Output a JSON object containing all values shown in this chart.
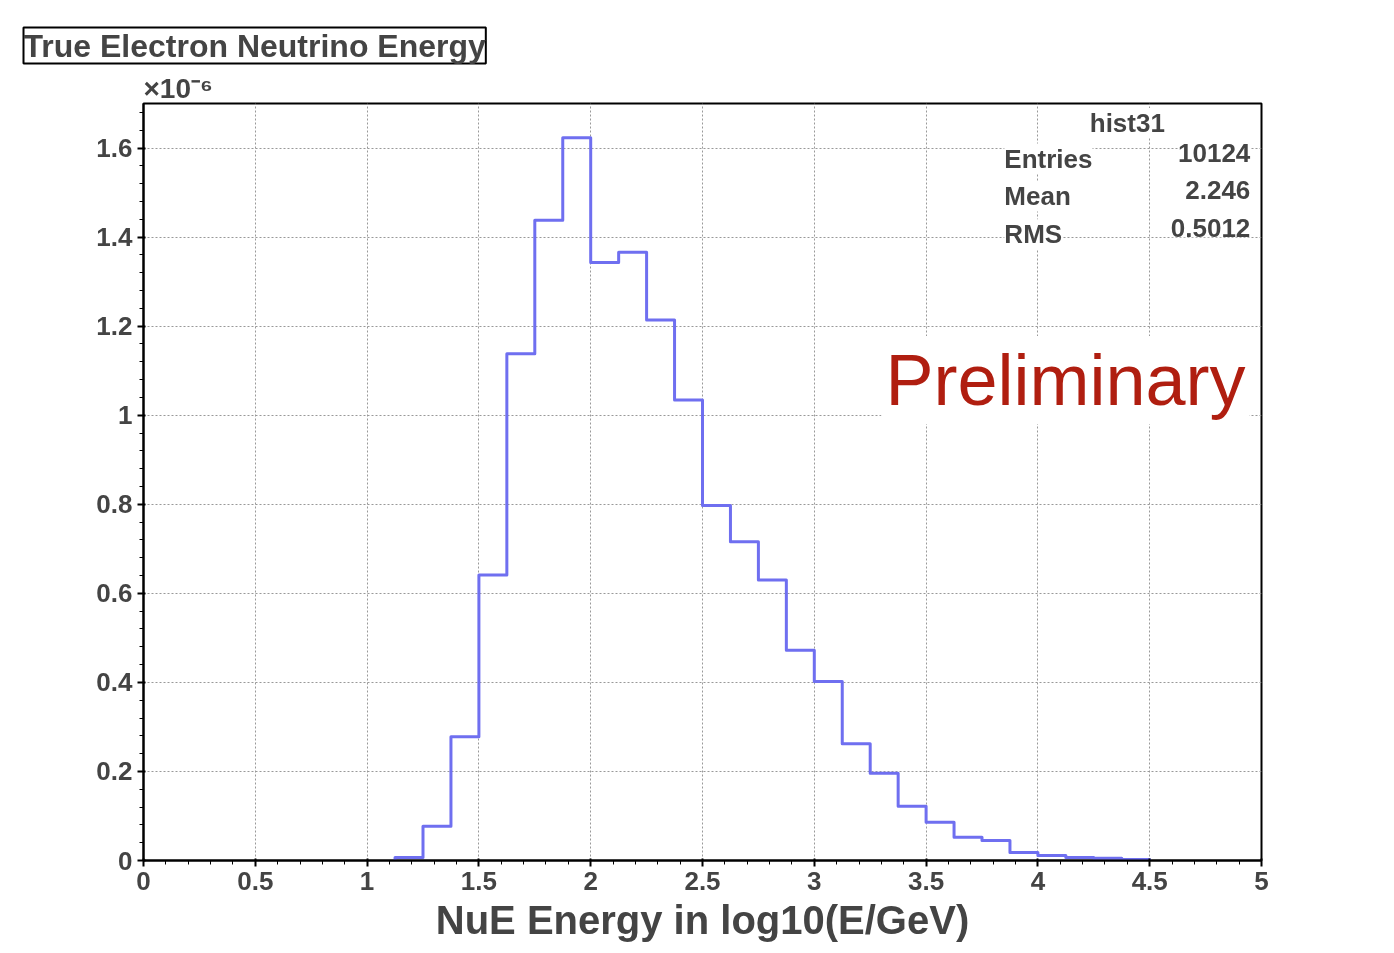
{
  "chart_data": {
    "type": "histogram",
    "title": "True Electron Neutrino Energy",
    "xlabel": "NuE Energy in log10(E/GeV)",
    "ylabel": "×10⁻⁶",
    "bins": [
      1.125,
      1.25,
      1.375,
      1.5,
      1.625,
      1.75,
      1.875,
      2.0,
      2.125,
      2.25,
      2.375,
      2.5,
      2.625,
      2.75,
      2.875,
      3.0,
      3.125,
      3.25,
      3.375,
      3.5,
      3.625,
      3.75,
      3.875,
      4.0,
      4.125,
      4.25,
      4.375,
      4.5
    ],
    "values": [
      0.007,
      0.077,
      0.278,
      0.641,
      1.138,
      1.438,
      1.623,
      1.343,
      1.366,
      1.214,
      1.034,
      0.797,
      0.716,
      0.63,
      0.472,
      0.402,
      0.262,
      0.196,
      0.122,
      0.086,
      0.052,
      0.045,
      0.018,
      0.011,
      0.007,
      0.005,
      0.002
    ],
    "color": "#6f6ff0",
    "xlim": [
      0,
      5
    ],
    "xticks": [
      0,
      0.5,
      1,
      1.5,
      2,
      2.5,
      3,
      3.5,
      4,
      4.5,
      5
    ],
    "ylim": [
      0,
      1.7
    ],
    "yticks": [
      0,
      0.2,
      0.4,
      0.6,
      0.8,
      1,
      1.2,
      1.4,
      1.6
    ],
    "grid": true,
    "annotations": [
      "Preliminary",
      "hist31",
      "Entries",
      "10124",
      "Mean",
      "2.246",
      "RMS",
      "0.5012"
    ]
  }
}
